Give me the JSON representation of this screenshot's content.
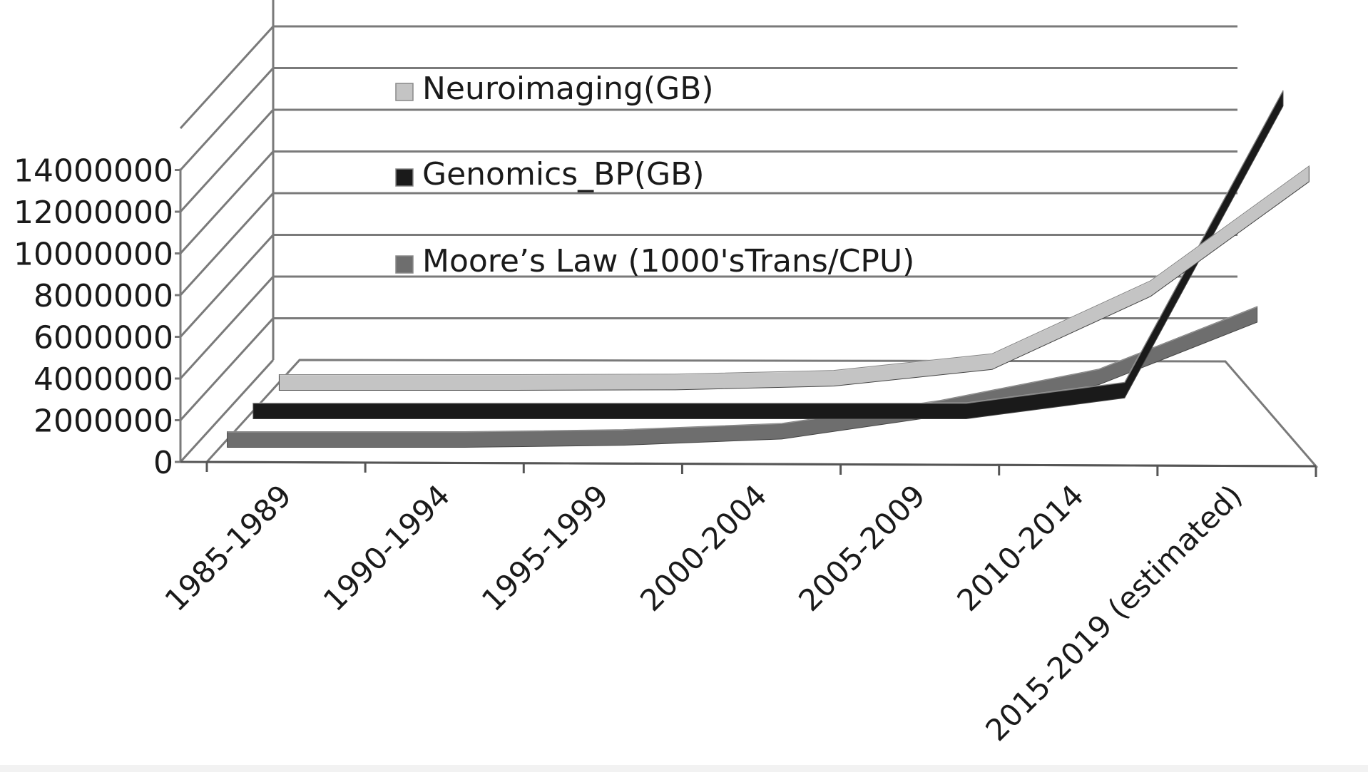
{
  "chart_data": {
    "type": "line",
    "categories": [
      "1985-1989",
      "1990-1994",
      "1995-1999",
      "2000-2004",
      "2005-2009",
      "2010-2014",
      "2015-2019 (estimated)"
    ],
    "series": [
      {
        "name": "Neuroimaging(GB)",
        "color": "#c4c4c4",
        "values": [
          0,
          0,
          20000,
          200000,
          1000000,
          4500000,
          10000000
        ]
      },
      {
        "name": "Genomics_BP(GB)",
        "color": "#1a1a1a",
        "values": [
          0,
          0,
          0,
          0,
          0,
          1000000,
          15000000
        ]
      },
      {
        "name": "Moore’s Law (1000'sTrans/CPU)",
        "color": "#6e6e6e",
        "values": [
          0,
          0,
          100000,
          400000,
          1500000,
          3000000,
          6000000
        ]
      }
    ],
    "ylim": [
      0,
      14000000
    ],
    "yticks": [
      "0",
      "2000000",
      "4000000",
      "6000000",
      "8000000",
      "10000000",
      "12000000",
      "14000000"
    ],
    "legend_position": "inside top-left",
    "grid": true,
    "three_d": true
  }
}
